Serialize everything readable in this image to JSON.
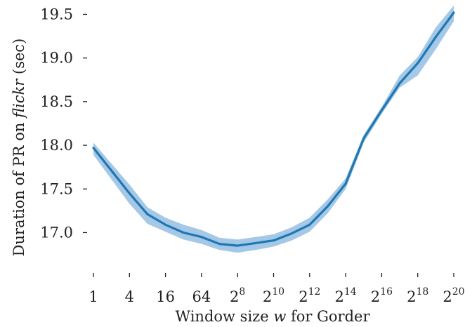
{
  "chart_data": {
    "type": "line",
    "xlabel": {
      "prefix": "Window size ",
      "italic": "w",
      "suffix": " for Gorder"
    },
    "ylabel": {
      "prefix": "Duration of PR on ",
      "italic": "flickr",
      "suffix": " (sec)"
    },
    "x_scale": "log2",
    "xlim": [
      0,
      20
    ],
    "ylim": [
      16.65,
      19.6
    ],
    "x_ticks": [
      {
        "exp": 0,
        "base": "1",
        "sup": ""
      },
      {
        "exp": 2,
        "base": "4",
        "sup": ""
      },
      {
        "exp": 4,
        "base": "16",
        "sup": ""
      },
      {
        "exp": 6,
        "base": "64",
        "sup": ""
      },
      {
        "exp": 8,
        "base": "2",
        "sup": "8"
      },
      {
        "exp": 10,
        "base": "2",
        "sup": "10"
      },
      {
        "exp": 12,
        "base": "2",
        "sup": "12"
      },
      {
        "exp": 14,
        "base": "2",
        "sup": "14"
      },
      {
        "exp": 16,
        "base": "2",
        "sup": "16"
      },
      {
        "exp": 18,
        "base": "2",
        "sup": "18"
      },
      {
        "exp": 20,
        "base": "2",
        "sup": "20"
      }
    ],
    "y_ticks": [
      17.0,
      17.5,
      18.0,
      18.5,
      19.0,
      19.5
    ],
    "y_tick_labels": [
      "17.0",
      "17.5",
      "18.0",
      "18.5",
      "19.0",
      "19.5"
    ],
    "grid": false,
    "series": [
      {
        "color": "#1f77b4",
        "band_color": "#9ac2e2",
        "x": [
          1,
          4,
          8,
          16,
          32,
          64,
          128,
          256,
          512,
          1024,
          2048,
          4096,
          8192,
          16384,
          32768,
          65536,
          131072,
          262144,
          524288,
          1048576
        ],
        "x_exp": [
          0,
          2,
          3,
          4,
          5,
          6,
          7,
          8,
          9,
          10,
          11,
          12,
          13,
          14,
          15,
          16,
          17,
          18,
          19,
          20
        ],
        "y": [
          17.97,
          17.45,
          17.21,
          17.09,
          17.0,
          16.95,
          16.87,
          16.85,
          16.88,
          16.91,
          16.99,
          17.09,
          17.3,
          17.56,
          18.08,
          18.4,
          18.71,
          18.94,
          19.24,
          19.52
        ],
        "y_low": [
          17.89,
          17.33,
          17.1,
          17.01,
          16.92,
          16.87,
          16.8,
          16.77,
          16.8,
          16.84,
          16.91,
          17.01,
          17.22,
          17.5,
          18.03,
          18.36,
          18.66,
          18.8,
          19.1,
          19.42
        ],
        "y_high": [
          18.03,
          17.55,
          17.29,
          17.17,
          17.09,
          17.03,
          16.94,
          16.92,
          16.95,
          16.98,
          17.06,
          17.17,
          17.38,
          17.62,
          18.12,
          18.44,
          18.8,
          19.01,
          19.35,
          19.6
        ]
      }
    ]
  }
}
